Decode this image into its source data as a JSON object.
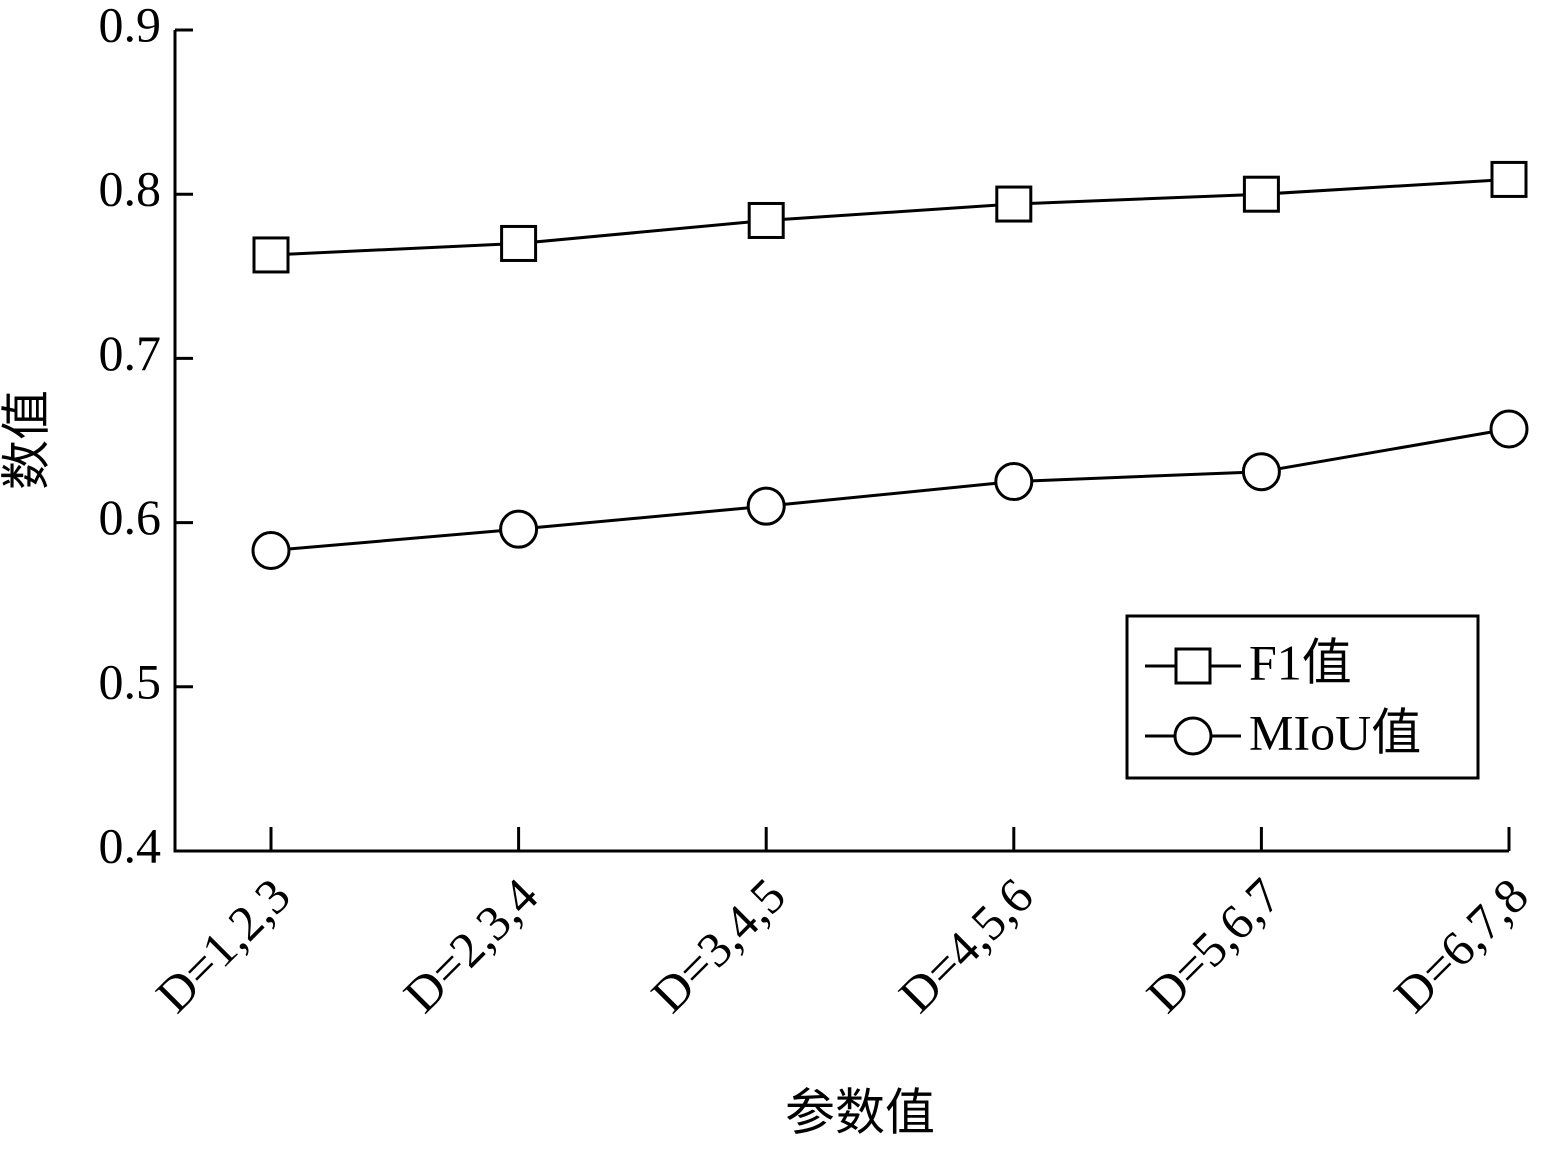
{
  "chart_data": {
    "type": "line",
    "x_label": "参数值",
    "y_label": "数值",
    "categories": [
      "D=1,2,3",
      "D=2,3,4",
      "D=3,4,5",
      "D=4,5,6",
      "D=5,6,7",
      "D=6,7,8"
    ],
    "series": [
      {
        "name": "F1值",
        "color": "#000000",
        "marker": "square",
        "values": [
          0.763,
          0.77,
          0.784,
          0.794,
          0.8,
          0.809
        ]
      },
      {
        "name": "MIoU值",
        "color": "#000000",
        "marker": "circle",
        "values": [
          0.583,
          0.596,
          0.61,
          0.625,
          0.631,
          0.657
        ]
      }
    ],
    "ylim": [
      0.4,
      0.9
    ],
    "yticks": [
      0.4,
      0.5,
      0.6,
      0.7,
      0.8,
      0.9
    ],
    "grid": false,
    "legend": "lower right"
  }
}
